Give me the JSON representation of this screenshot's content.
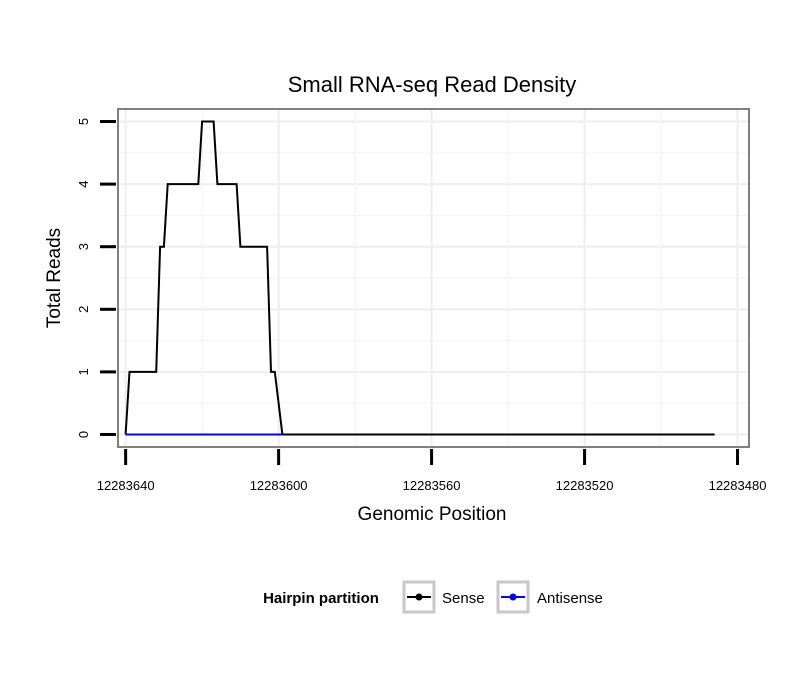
{
  "chart_data": {
    "type": "line",
    "title": "Small RNA-seq Read Density",
    "xlabel": "Genomic Position",
    "ylabel": "Total Reads",
    "xlim": [
      12283642,
      12283477
    ],
    "x_reversed": true,
    "ylim": [
      -0.2,
      5.2
    ],
    "x_ticks": [
      12283640,
      12283600,
      12283560,
      12283520,
      12283480
    ],
    "x_tick_labels": [
      "12283640",
      "12283600",
      "12283560",
      "12283520",
      "12283480"
    ],
    "y_ticks": [
      0,
      1,
      2,
      3,
      4,
      5
    ],
    "y_tick_labels": [
      "0",
      "1",
      "2",
      "3",
      "4",
      "5"
    ],
    "grid": true,
    "legend": {
      "title": "Hairpin partition",
      "position": "bottom"
    },
    "series": [
      {
        "name": "Sense",
        "color": "#000000",
        "x": [
          12283640,
          12283639,
          12283632,
          12283631,
          12283630,
          12283629,
          12283621,
          12283620,
          12283617,
          12283616,
          12283611,
          12283610,
          12283603,
          12283602,
          12283601,
          12283599,
          12283486
        ],
        "y": [
          0,
          1,
          1,
          3,
          3,
          4,
          4,
          5,
          5,
          4,
          4,
          3,
          3,
          1,
          1,
          0,
          0
        ]
      },
      {
        "name": "Antisense",
        "color": "#0000ff",
        "x": [
          12283640,
          12283599
        ],
        "y": [
          0,
          0
        ]
      }
    ]
  }
}
